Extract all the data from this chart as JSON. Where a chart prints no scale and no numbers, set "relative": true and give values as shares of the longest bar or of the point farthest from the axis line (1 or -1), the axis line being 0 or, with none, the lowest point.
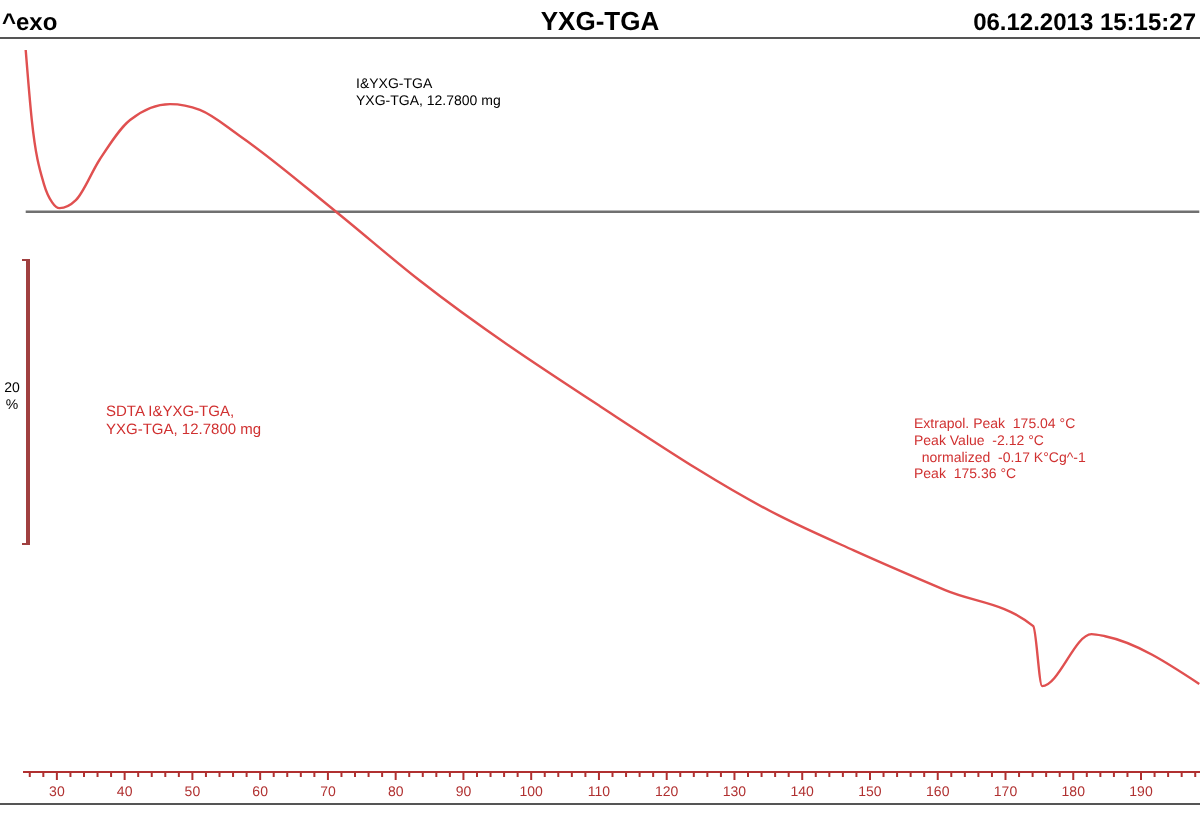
{
  "chart_data": {
    "type": "line",
    "title": "YXG-TGA",
    "relative": true,
    "grid": false,
    "marker": "none",
    "line_style": "solid",
    "xlim": [
      25,
      199
    ],
    "xticks": [
      {
        "value": 26,
        "label": null
      },
      {
        "value": 28,
        "label": null
      },
      30,
      {
        "value": 32,
        "label": null
      },
      {
        "value": 34,
        "label": null
      },
      {
        "value": 36,
        "label": null
      },
      {
        "value": 38,
        "label": null
      },
      40,
      {
        "value": 42,
        "label": null
      },
      {
        "value": 44,
        "label": null
      },
      {
        "value": 46,
        "label": null
      },
      {
        "value": 48,
        "label": null
      },
      50,
      {
        "value": 52,
        "label": null
      },
      {
        "value": 54,
        "label": null
      },
      {
        "value": 56,
        "label": null
      },
      {
        "value": 58,
        "label": null
      },
      60,
      {
        "value": 62,
        "label": null
      },
      {
        "value": 64,
        "label": null
      },
      {
        "value": 66,
        "label": null
      },
      {
        "value": 68,
        "label": null
      },
      70,
      {
        "value": 72,
        "label": null
      },
      {
        "value": 74,
        "label": null
      },
      {
        "value": 76,
        "label": null
      },
      {
        "value": 78,
        "label": null
      },
      80,
      {
        "value": 82,
        "label": null
      },
      {
        "value": 84,
        "label": null
      },
      {
        "value": 86,
        "label": null
      },
      {
        "value": 88,
        "label": null
      },
      90,
      {
        "value": 92,
        "label": null
      },
      {
        "value": 94,
        "label": null
      },
      {
        "value": 96,
        "label": null
      },
      {
        "value": 98,
        "label": null
      },
      100,
      {
        "value": 102,
        "label": null
      },
      {
        "value": 104,
        "label": null
      },
      {
        "value": 106,
        "label": null
      },
      {
        "value": 108,
        "label": null
      },
      110,
      {
        "value": 112,
        "label": null
      },
      {
        "value": 114,
        "label": null
      },
      {
        "value": 116,
        "label": null
      },
      {
        "value": 118,
        "label": null
      },
      120,
      {
        "value": 122,
        "label": null
      },
      {
        "value": 124,
        "label": null
      },
      {
        "value": 126,
        "label": null
      },
      {
        "value": 128,
        "label": null
      },
      130,
      {
        "value": 132,
        "label": null
      },
      {
        "value": 134,
        "label": null
      },
      {
        "value": 136,
        "label": null
      },
      {
        "value": 138,
        "label": null
      },
      140,
      {
        "value": 142,
        "label": null
      },
      {
        "value": 144,
        "label": null
      },
      {
        "value": 146,
        "label": null
      },
      {
        "value": 148,
        "label": null
      },
      150,
      {
        "value": 152,
        "label": null
      },
      {
        "value": 154,
        "label": null
      },
      {
        "value": 156,
        "label": null
      },
      {
        "value": 158,
        "label": null
      },
      160,
      {
        "value": 162,
        "label": null
      },
      {
        "value": 164,
        "label": null
      },
      {
        "value": 166,
        "label": null
      },
      {
        "value": 168,
        "label": null
      },
      170,
      {
        "value": 172,
        "label": null
      },
      {
        "value": 174,
        "label": null
      },
      {
        "value": 176,
        "label": null
      },
      {
        "value": 178,
        "label": null
      },
      180,
      {
        "value": 182,
        "label": null
      },
      {
        "value": 184,
        "label": null
      },
      {
        "value": 186,
        "label": null
      },
      {
        "value": 188,
        "label": null
      },
      190,
      {
        "value": 192,
        "label": null
      },
      {
        "value": 194,
        "label": null
      },
      {
        "value": 196,
        "label": null
      },
      {
        "value": 198,
        "label": null
      }
    ],
    "series": [
      {
        "color": "#707070",
        "x": [
          25.4,
          198.6
        ],
        "values": [
          0.776,
          0.776
        ]
      },
      {
        "color": "#e05050",
        "x": [
          25.4,
          26.3,
          28.1,
          29.3,
          30.4,
          32.8,
          36.3,
          40.8,
          46.7,
          51.1,
          57.0,
          71.2,
          83.5,
          110.1,
          136.6,
          147.6,
          161.1,
          174.1,
          175.4,
          182.7,
          184.7,
          198.6
        ],
        "values": [
          1,
          0.903,
          0.814,
          0.789,
          0.781,
          0.792,
          0.848,
          0.903,
          0.925,
          0.917,
          0.881,
          0.776,
          0.681,
          0.507,
          0.355,
          0.307,
          0.252,
          0.202,
          0.119,
          0.191,
          0.188,
          0.122
        ]
      }
    ],
    "annotations": [
      "^exo",
      "06.12.2013 15:15:27",
      "20 %",
      "I&YXG-TGA\nYXG-TGA, 12.7800 mg",
      "SDTA I&YXG-TGA,\nYXG-TGA, 12.7800 mg",
      "Extrapol. Peak  175.04 °C\nPeak Value  -2.12 °C\n  normalized  -0.17 K°Cg^-1\nPeak  175.36 °C"
    ]
  }
}
